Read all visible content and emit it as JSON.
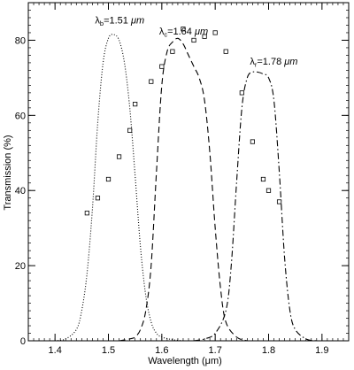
{
  "chart_data": {
    "type": "line",
    "xlabel": "Wavelength (μm)",
    "ylabel": "Transmission (%)",
    "xlim": [
      1.35,
      1.95
    ],
    "ylim": [
      0,
      90
    ],
    "x_ticks": [
      1.4,
      1.5,
      1.6,
      1.7,
      1.8,
      1.9
    ],
    "y_ticks": [
      0,
      20,
      40,
      60,
      80
    ],
    "x_minor_step": 0.01,
    "y_minor_step": 2,
    "grid": false,
    "legend": "none",
    "series": [
      {
        "style": "dotted",
        "x": [
          1.4,
          1.42,
          1.44,
          1.45,
          1.46,
          1.47,
          1.48,
          1.49,
          1.5,
          1.51,
          1.52,
          1.53,
          1.54,
          1.55,
          1.56,
          1.57,
          1.58,
          1.59,
          1.6,
          1.62,
          1.64
        ],
        "y": [
          0,
          0.5,
          3,
          8,
          18,
          35,
          58,
          74,
          80.5,
          81.5,
          80,
          74,
          62,
          44,
          25,
          12,
          5,
          2,
          1,
          0.3,
          0
        ]
      },
      {
        "style": "dashed",
        "x": [
          1.52,
          1.54,
          1.55,
          1.56,
          1.57,
          1.58,
          1.59,
          1.6,
          1.61,
          1.62,
          1.63,
          1.64,
          1.65,
          1.66,
          1.67,
          1.68,
          1.69,
          1.7,
          1.71,
          1.72,
          1.74,
          1.76
        ],
        "y": [
          0,
          0.5,
          1,
          3,
          8,
          20,
          45,
          68,
          77,
          79.5,
          80.5,
          79,
          76,
          73,
          70,
          64,
          50,
          30,
          14,
          5,
          1,
          0
        ]
      },
      {
        "style": "dashdot",
        "x": [
          1.66,
          1.68,
          1.7,
          1.72,
          1.73,
          1.74,
          1.75,
          1.76,
          1.77,
          1.78,
          1.79,
          1.8,
          1.81,
          1.82,
          1.83,
          1.84,
          1.85,
          1.87,
          1.89
        ],
        "y": [
          0,
          0.5,
          2,
          8,
          20,
          42,
          62,
          70,
          71.5,
          71.5,
          71,
          70,
          64,
          45,
          22,
          8,
          3,
          0.5,
          0
        ]
      }
    ],
    "points": {
      "marker": "open-square",
      "x": [
        1.46,
        1.48,
        1.5,
        1.52,
        1.54,
        1.55,
        1.58,
        1.6,
        1.62,
        1.64,
        1.66,
        1.68,
        1.7,
        1.72,
        1.75,
        1.77,
        1.79,
        1.8,
        1.82
      ],
      "y": [
        34,
        38,
        43,
        49,
        56,
        63,
        69,
        73,
        77,
        83,
        80,
        81,
        82,
        77,
        66,
        53,
        43,
        40,
        37
      ]
    },
    "annotations": [
      {
        "symbol": "λ",
        "sub": "b",
        "text": "=1.51 ",
        "unit": "μm",
        "x": 1.475,
        "y": 84.5
      },
      {
        "symbol": "λ",
        "sub": "c",
        "text": "=1.64 ",
        "unit": "μm",
        "x": 1.595,
        "y": 81.5
      },
      {
        "symbol": "λ",
        "sub": "r",
        "text": "=1.78 ",
        "unit": "μm",
        "x": 1.765,
        "y": 73.5
      }
    ]
  }
}
